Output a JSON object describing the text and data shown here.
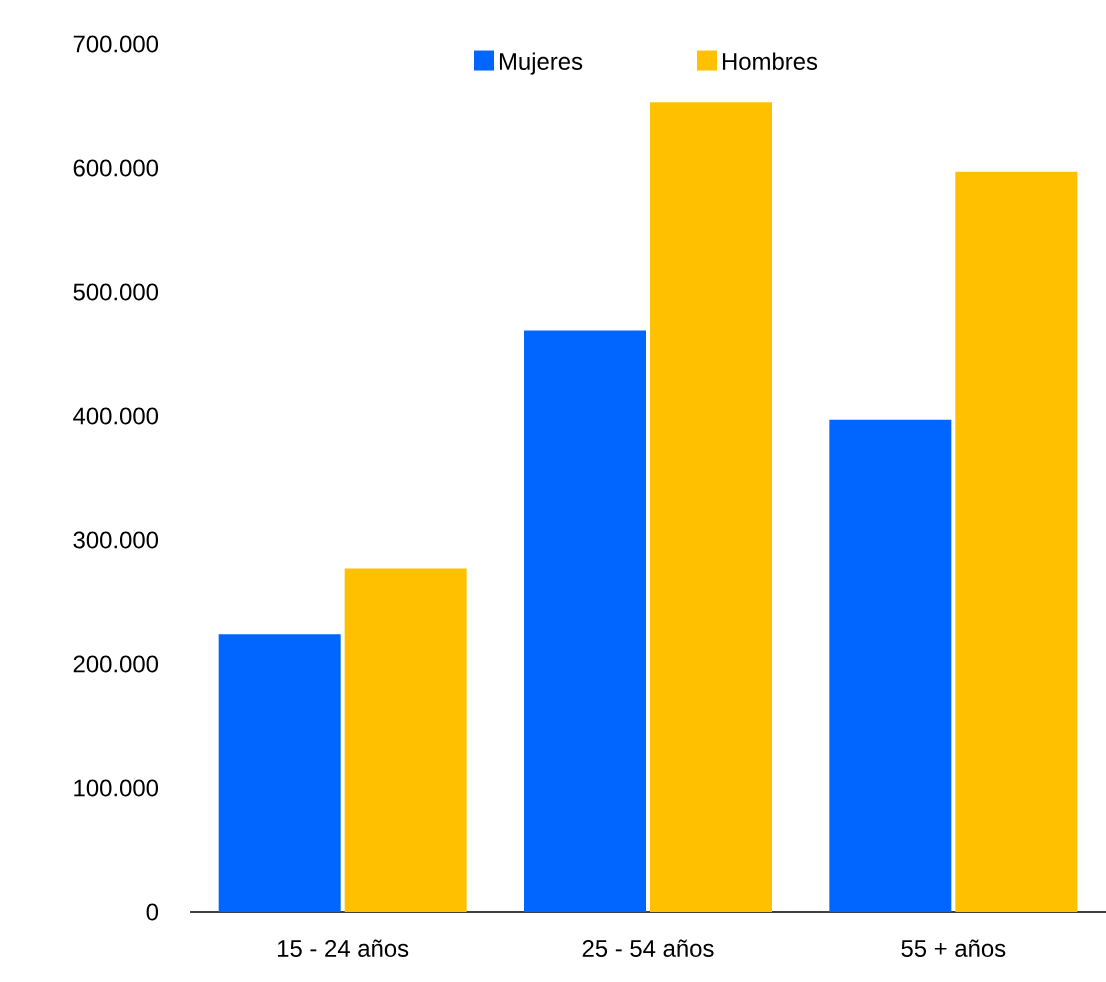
{
  "chart_data": {
    "type": "bar",
    "categories": [
      "15 - 24 años",
      "25 - 54 años",
      "55 + años"
    ],
    "series": [
      {
        "name": "Mujeres",
        "color": "#0066ff",
        "values": [
          224000,
          469000,
          397000
        ]
      },
      {
        "name": "Hombres",
        "color": "#ffc000",
        "values": [
          277000,
          653000,
          597000
        ]
      }
    ],
    "ylim": [
      0,
      700000
    ],
    "yticks": [
      0,
      {
        "value": 100000,
        "label": "100.000"
      },
      {
        "value": 200000,
        "label": "200.000"
      },
      {
        "value": 300000,
        "label": "300.000"
      },
      {
        "value": 400000,
        "label": "400.000"
      },
      {
        "value": 500000,
        "label": "500.000"
      },
      {
        "value": 600000,
        "label": "600.000"
      },
      {
        "value": 700000,
        "label": "700.000"
      }
    ],
    "legend": "top"
  }
}
